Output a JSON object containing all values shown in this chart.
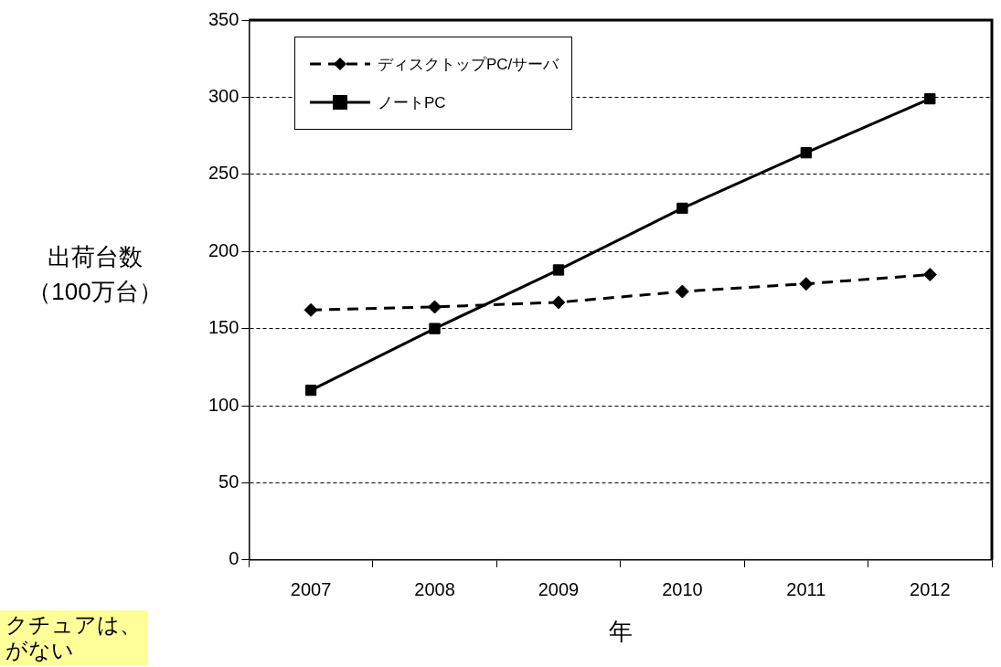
{
  "chart_data": {
    "type": "line",
    "xlabel": "年",
    "ylabel": "出荷台数（100万台）",
    "categories": [
      "2007",
      "2008",
      "2009",
      "2010",
      "2011",
      "2012"
    ],
    "series": [
      {
        "name": "ディスクトップPC/サーバ",
        "color": "#000000",
        "values": [
          162,
          164,
          167,
          174,
          179,
          185
        ],
        "marker": "diamond",
        "line_style": "dashed"
      },
      {
        "name": "ノートPC",
        "color": "#000000",
        "values": [
          110,
          150,
          188,
          228,
          264,
          299
        ],
        "marker": "square",
        "line_style": "solid"
      }
    ],
    "ylim": [
      0,
      350
    ],
    "yticks": [
      0,
      50,
      100,
      150,
      200,
      250,
      300,
      350
    ],
    "grid": "y",
    "legend": "top left",
    "annotations": [
      "クチュアは、がない"
    ]
  }
}
